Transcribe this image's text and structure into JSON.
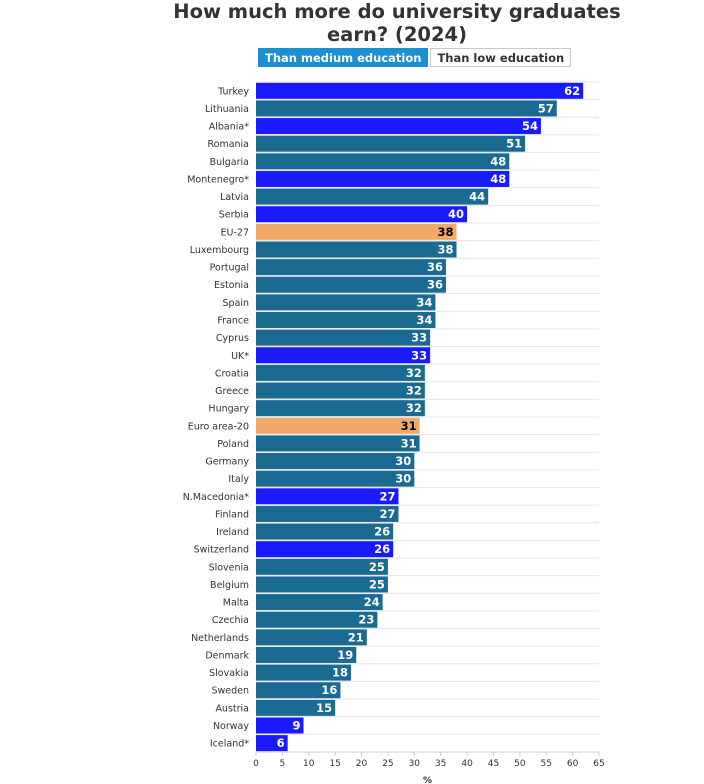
{
  "header": {
    "title_line1": "How much more do university graduates",
    "title_line2": "earn? (2024)"
  },
  "tabs": [
    {
      "label": "Than medium education",
      "active": true
    },
    {
      "label": "Than low education",
      "active": false
    }
  ],
  "colors": {
    "eu_member": "#1b6a91",
    "non_eu": "#1a1aff",
    "aggregate": "#f0a86b",
    "active_tab": "#1a8fd1"
  },
  "chart_data": {
    "type": "bar",
    "orientation": "horizontal",
    "title": "How much more do university graduates earn? (2024)",
    "xlabel": "%",
    "xlim": [
      0,
      65
    ],
    "xticks": [
      0,
      5,
      10,
      15,
      20,
      25,
      30,
      35,
      40,
      45,
      50,
      55,
      60,
      65
    ],
    "grid": true,
    "categories": [
      "Turkey",
      "Lithuania",
      "Albania*",
      "Romania",
      "Bulgaria",
      "Montenegro*",
      "Latvia",
      "Serbia",
      "EU-27",
      "Luxembourg",
      "Portugal",
      "Estonia",
      "Spain",
      "France",
      "Cyprus",
      "UK*",
      "Croatia",
      "Greece",
      "Hungary",
      "Euro area-20",
      "Poland",
      "Germany",
      "Italy",
      "N.Macedonia*",
      "Finland",
      "Ireland",
      "Switzerland",
      "Slovenia",
      "Belgium",
      "Malta",
      "Czechia",
      "Netherlands",
      "Denmark",
      "Slovakia",
      "Sweden",
      "Austria",
      "Norway",
      "Iceland*"
    ],
    "values": [
      62,
      57,
      54,
      51,
      48,
      48,
      44,
      40,
      38,
      38,
      36,
      36,
      34,
      34,
      33,
      33,
      32,
      32,
      32,
      31,
      31,
      30,
      30,
      27,
      27,
      26,
      26,
      25,
      25,
      24,
      23,
      21,
      19,
      18,
      16,
      15,
      9,
      6
    ],
    "groups": [
      "non_eu",
      "eu_member",
      "non_eu",
      "eu_member",
      "eu_member",
      "non_eu",
      "eu_member",
      "non_eu",
      "aggregate",
      "eu_member",
      "eu_member",
      "eu_member",
      "eu_member",
      "eu_member",
      "eu_member",
      "non_eu",
      "eu_member",
      "eu_member",
      "eu_member",
      "aggregate",
      "eu_member",
      "eu_member",
      "eu_member",
      "non_eu",
      "eu_member",
      "eu_member",
      "non_eu",
      "eu_member",
      "eu_member",
      "eu_member",
      "eu_member",
      "eu_member",
      "eu_member",
      "eu_member",
      "eu_member",
      "eu_member",
      "non_eu",
      "non_eu"
    ]
  }
}
